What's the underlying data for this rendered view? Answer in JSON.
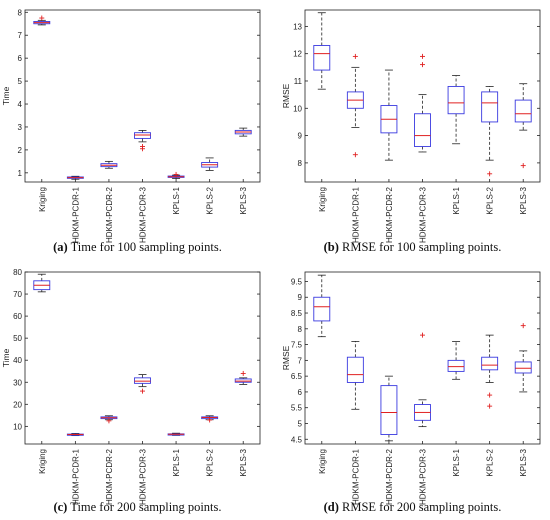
{
  "categories": [
    "Kriging",
    "HDKM-PCDR-1",
    "HDKM-PCDR-2",
    "HDKM-PCDR-3",
    "KPLS-1",
    "KPLS-2",
    "KPLS-3"
  ],
  "colors": {
    "box": "#3a3ae0",
    "median": "#e02020",
    "outlier": "#e02020",
    "whisker": "#222222",
    "axis": "#222222"
  },
  "captions": [
    {
      "tag": "(a)",
      "text": " Time for 100 sampling points."
    },
    {
      "tag": "(b)",
      "text": " RMSE for 100 sampling points."
    },
    {
      "tag": "(c)",
      "text": " Time for 200 sampling points."
    },
    {
      "tag": "(d)",
      "text": " RMSE for 200 sampling points."
    }
  ],
  "chart_data": [
    {
      "type": "box",
      "ylabel": "Time",
      "ylim": [
        0.6,
        8.1
      ],
      "yticks": [
        1,
        2,
        3,
        4,
        5,
        6,
        7,
        8
      ],
      "grid": false,
      "boxes": [
        {
          "category": "Kriging",
          "min": 7.45,
          "q1": 7.5,
          "median": 7.55,
          "q3": 7.6,
          "max": 7.65,
          "outliers": [
            7.75
          ]
        },
        {
          "category": "HDKM-PCDR-1",
          "min": 0.72,
          "q1": 0.76,
          "median": 0.79,
          "q3": 0.82,
          "max": 0.85,
          "outliers": []
        },
        {
          "category": "HDKM-PCDR-2",
          "min": 1.2,
          "q1": 1.27,
          "median": 1.33,
          "q3": 1.4,
          "max": 1.5,
          "outliers": []
        },
        {
          "category": "HDKM-PCDR-3",
          "min": 2.35,
          "q1": 2.5,
          "median": 2.65,
          "q3": 2.75,
          "max": 2.85,
          "outliers": [
            2.05,
            2.15
          ]
        },
        {
          "category": "KPLS-1",
          "min": 0.75,
          "q1": 0.8,
          "median": 0.83,
          "q3": 0.86,
          "max": 0.9,
          "outliers": [
            0.93
          ]
        },
        {
          "category": "KPLS-2",
          "min": 1.1,
          "q1": 1.25,
          "median": 1.35,
          "q3": 1.45,
          "max": 1.65,
          "outliers": []
        },
        {
          "category": "KPLS-3",
          "min": 2.6,
          "q1": 2.7,
          "median": 2.78,
          "q3": 2.85,
          "max": 2.95,
          "outliers": []
        }
      ]
    },
    {
      "type": "box",
      "ylabel": "RMSE",
      "ylim": [
        7.3,
        13.6
      ],
      "yticks": [
        8,
        9,
        10,
        11,
        12,
        13
      ],
      "grid": false,
      "boxes": [
        {
          "category": "Kriging",
          "min": 10.7,
          "q1": 11.4,
          "median": 12.0,
          "q3": 12.3,
          "max": 13.5,
          "outliers": []
        },
        {
          "category": "HDKM-PCDR-1",
          "min": 9.3,
          "q1": 10.0,
          "median": 10.3,
          "q3": 10.6,
          "max": 11.5,
          "outliers": [
            8.3,
            11.9
          ]
        },
        {
          "category": "HDKM-PCDR-2",
          "min": 8.1,
          "q1": 9.1,
          "median": 9.6,
          "q3": 10.1,
          "max": 11.4,
          "outliers": []
        },
        {
          "category": "HDKM-PCDR-3",
          "min": 8.4,
          "q1": 8.6,
          "median": 9.0,
          "q3": 9.8,
          "max": 10.5,
          "outliers": [
            11.6,
            11.9
          ]
        },
        {
          "category": "KPLS-1",
          "min": 8.7,
          "q1": 9.8,
          "median": 10.2,
          "q3": 10.8,
          "max": 11.2,
          "outliers": []
        },
        {
          "category": "KPLS-2",
          "min": 8.1,
          "q1": 9.5,
          "median": 10.2,
          "q3": 10.6,
          "max": 10.8,
          "outliers": [
            7.6
          ]
        },
        {
          "category": "KPLS-3",
          "min": 9.2,
          "q1": 9.5,
          "median": 9.8,
          "q3": 10.3,
          "max": 10.9,
          "outliers": [
            7.9
          ]
        }
      ]
    },
    {
      "type": "box",
      "ylabel": "Time",
      "ylim": [
        2,
        80
      ],
      "yticks": [
        10,
        20,
        30,
        40,
        50,
        60,
        70,
        80
      ],
      "grid": false,
      "boxes": [
        {
          "category": "Kriging",
          "min": 71,
          "q1": 72,
          "median": 74,
          "q3": 76,
          "max": 79,
          "outliers": []
        },
        {
          "category": "HDKM-PCDR-1",
          "min": 5.8,
          "q1": 6.1,
          "median": 6.3,
          "q3": 6.5,
          "max": 6.8,
          "outliers": []
        },
        {
          "category": "HDKM-PCDR-2",
          "min": 13,
          "q1": 13.5,
          "median": 13.9,
          "q3": 14.3,
          "max": 14.8,
          "outliers": [
            12.5
          ]
        },
        {
          "category": "HDKM-PCDR-3",
          "min": 28,
          "q1": 29.5,
          "median": 30.5,
          "q3": 32,
          "max": 33.5,
          "outliers": [
            26
          ]
        },
        {
          "category": "KPLS-1",
          "min": 5.9,
          "q1": 6.2,
          "median": 6.4,
          "q3": 6.6,
          "max": 6.9,
          "outliers": []
        },
        {
          "category": "KPLS-2",
          "min": 13,
          "q1": 13.5,
          "median": 14,
          "q3": 14.3,
          "max": 14.8,
          "outliers": [
            12.9
          ]
        },
        {
          "category": "KPLS-3",
          "min": 29,
          "q1": 30,
          "median": 30.5,
          "q3": 31.5,
          "max": 32,
          "outliers": [
            34
          ]
        }
      ]
    },
    {
      "type": "box",
      "ylabel": "RMSE",
      "ylim": [
        4.35,
        9.8
      ],
      "yticks": [
        4.5,
        5,
        5.5,
        6,
        6.5,
        7,
        7.5,
        8,
        8.5,
        9,
        9.5
      ],
      "grid": false,
      "boxes": [
        {
          "category": "Kriging",
          "min": 7.75,
          "q1": 8.25,
          "median": 8.7,
          "q3": 9.0,
          "max": 9.7,
          "outliers": []
        },
        {
          "category": "HDKM-PCDR-1",
          "min": 5.45,
          "q1": 6.3,
          "median": 6.55,
          "q3": 7.1,
          "max": 7.6,
          "outliers": []
        },
        {
          "category": "HDKM-PCDR-2",
          "min": 4.45,
          "q1": 4.65,
          "median": 5.35,
          "q3": 6.2,
          "max": 6.5,
          "outliers": []
        },
        {
          "category": "HDKM-PCDR-3",
          "min": 4.9,
          "q1": 5.1,
          "median": 5.35,
          "q3": 5.6,
          "max": 5.75,
          "outliers": [
            7.8
          ]
        },
        {
          "category": "KPLS-1",
          "min": 6.4,
          "q1": 6.65,
          "median": 6.8,
          "q3": 7.0,
          "max": 7.6,
          "outliers": []
        },
        {
          "category": "KPLS-2",
          "min": 6.3,
          "q1": 6.7,
          "median": 6.85,
          "q3": 7.1,
          "max": 7.8,
          "outliers": [
            5.55,
            5.9
          ]
        },
        {
          "category": "KPLS-3",
          "min": 6.0,
          "q1": 6.6,
          "median": 6.75,
          "q3": 6.95,
          "max": 7.3,
          "outliers": [
            8.1
          ]
        }
      ]
    }
  ]
}
